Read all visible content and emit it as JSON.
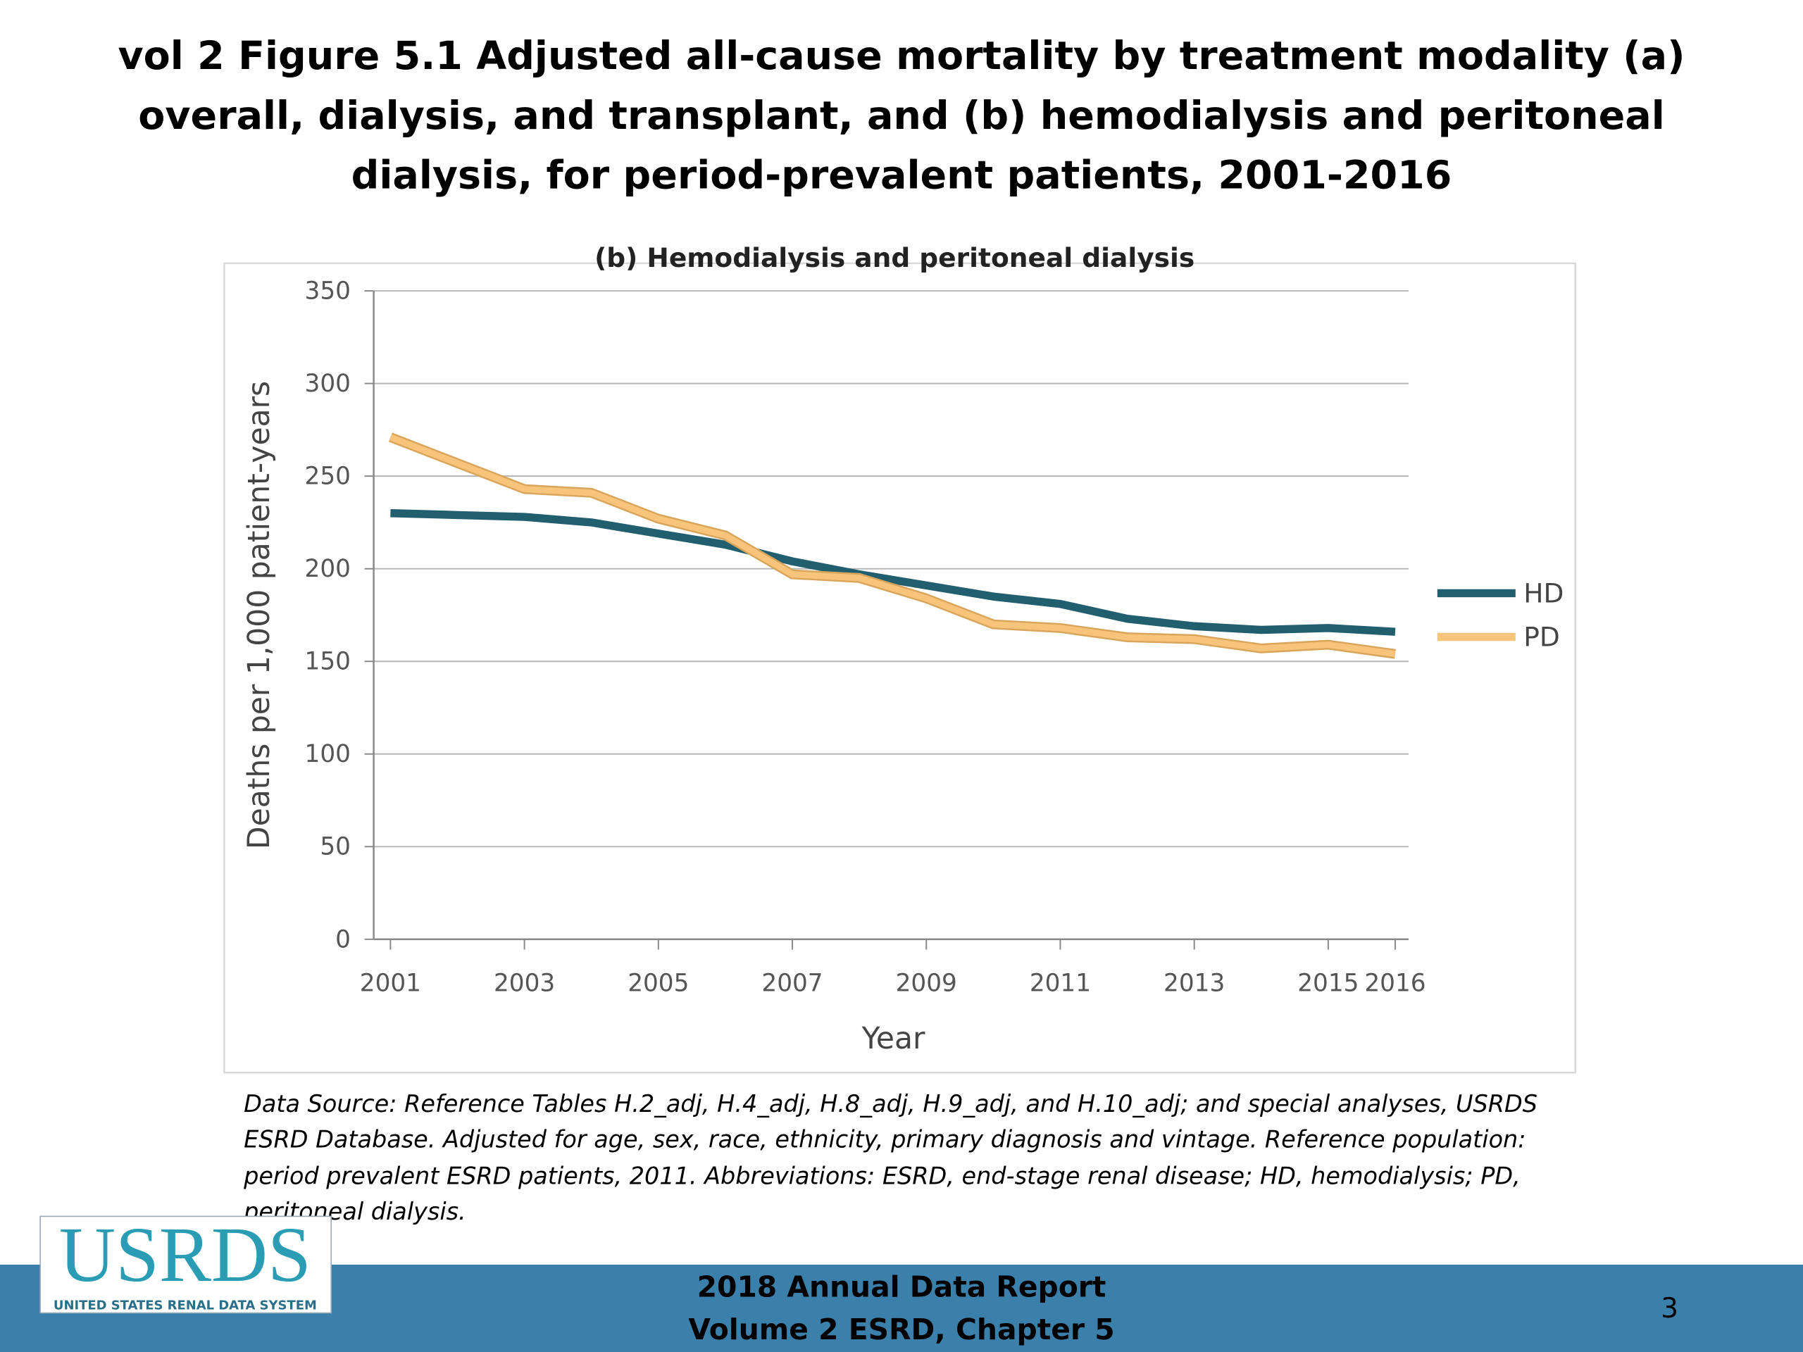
{
  "slide": {
    "title": [
      "vol 2 Figure 5.1 Adjusted all-cause mortality by treatment modality (a)",
      "overall, dialysis, and transplant, and (b) hemodialysis and peritoneal",
      "dialysis, for period-prevalent patients, 2001-2016"
    ],
    "note": [
      "Data Source: Reference Tables H.2_adj, H.4_adj, H.8_adj, H.9_adj, and H.10_adj; and special analyses, USRDS",
      "ESRD Database. Adjusted for age, sex, race, ethnicity, primary diagnosis and vintage. Reference population:",
      "period prevalent ESRD patients, 2011. Abbreviations: ESRD, end-stage renal disease; HD, hemodialysis; PD,",
      "peritoneal dialysis."
    ],
    "logo": "USRDS",
    "logo_sub": "UNITED STATES RENAL DATA SYSTEM",
    "footer": [
      "2018 Annual Data Report",
      "Volume 2 ESRD, Chapter 5"
    ],
    "page": "3"
  },
  "chart_data": {
    "type": "line",
    "title": "(b) Hemodialysis and peritoneal dialysis",
    "x_label": "Year",
    "y_label": "Deaths per 1,000 patient-years",
    "x": [
      2001,
      2002,
      2003,
      2004,
      2005,
      2006,
      2007,
      2008,
      2009,
      2010,
      2011,
      2012,
      2013,
      2014,
      2015,
      2016
    ],
    "series": [
      {
        "name": "HD",
        "color": "#215e6e",
        "values": [
          230,
          229,
          228,
          225,
          219,
          213,
          204,
          197,
          191,
          185,
          181,
          173,
          169,
          167,
          168,
          166
        ]
      },
      {
        "name": "PD",
        "color": "#f6c47a",
        "values": [
          271,
          257,
          243,
          241,
          227,
          218,
          197,
          195,
          184,
          170,
          168,
          163,
          162,
          157,
          159,
          154
        ]
      }
    ],
    "xlim": [
      2000.75,
      2016.2
    ],
    "xticks": [
      2001,
      2003,
      2005,
      2007,
      2009,
      2011,
      2013,
      2015,
      2016
    ],
    "ylim": [
      0,
      350
    ],
    "yticks": [
      0,
      50,
      100,
      150,
      200,
      250,
      300,
      350
    ],
    "grid": true,
    "legend": "right"
  }
}
